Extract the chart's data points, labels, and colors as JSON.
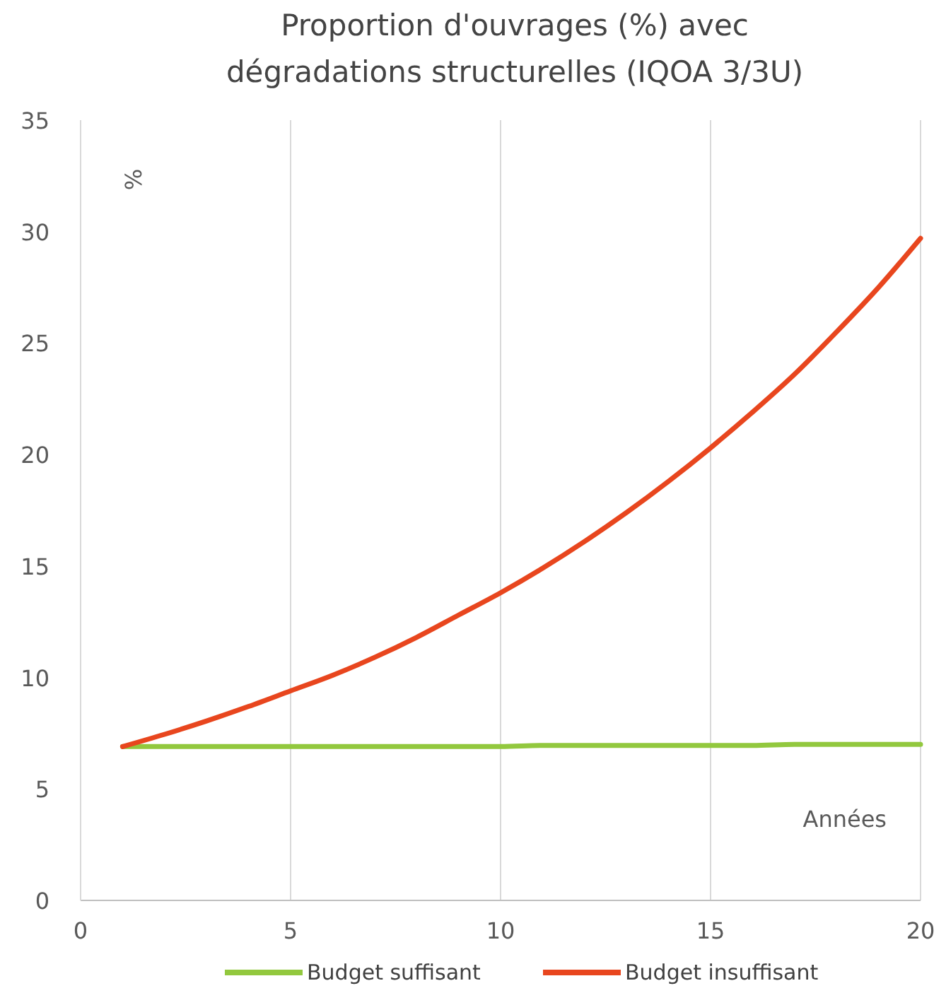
{
  "chart_data": {
    "type": "line",
    "title": "Proportion d'ouvrages (%) avec dégradations structurelles (IQOA 3/3U)",
    "xlabel": "Années",
    "ylabel": "%",
    "x": [
      1,
      2,
      3,
      4,
      5,
      6,
      7,
      8,
      9,
      10,
      11,
      12,
      13,
      14,
      15,
      16,
      17,
      18,
      19,
      20
    ],
    "series": [
      {
        "name": "Budget suffisant",
        "color": "#92c83e",
        "values": [
          6.9,
          6.9,
          6.9,
          6.9,
          6.9,
          6.9,
          6.9,
          6.9,
          6.9,
          6.9,
          6.95,
          6.95,
          6.95,
          6.95,
          6.95,
          6.95,
          7,
          7,
          7,
          7
        ]
      },
      {
        "name": "Budget insuffisant",
        "color": "#e8461e",
        "values": [
          6.9,
          7.45,
          8.05,
          8.7,
          9.4,
          10.1,
          10.9,
          11.8,
          12.8,
          13.8,
          14.9,
          16.1,
          17.4,
          18.8,
          20.3,
          21.9,
          23.6,
          25.5,
          27.5,
          29.7
        ]
      }
    ],
    "xlim": [
      0,
      20
    ],
    "xticks": [
      0,
      5,
      10,
      15,
      20
    ],
    "ylim": [
      0,
      35
    ],
    "yticks": [
      0,
      5,
      10,
      15,
      20,
      25,
      30,
      35
    ],
    "grid": "x",
    "legend": "bottom",
    "line_style": "solid"
  }
}
